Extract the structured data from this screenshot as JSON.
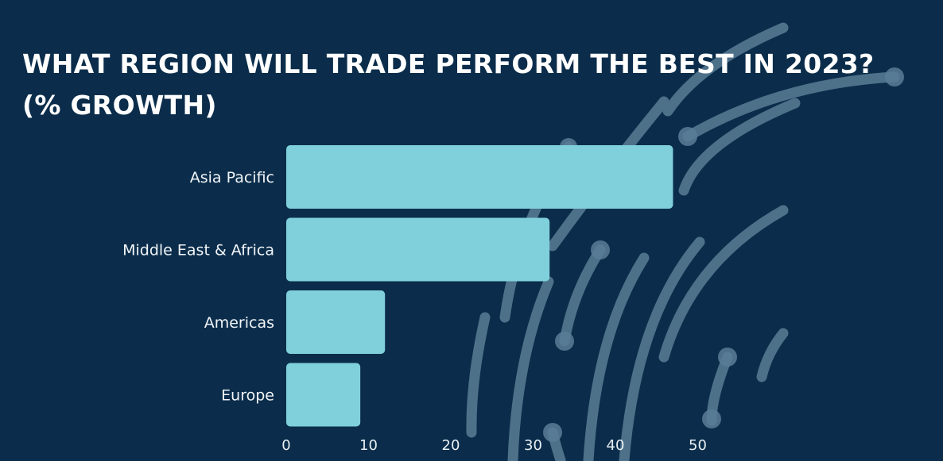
{
  "title": {
    "line1": "WHAT REGION WILL TRADE PERFORM THE BEST IN 2023?",
    "line2": "(% GROWTH)"
  },
  "colors": {
    "background": "#0b2d4b",
    "bar": "#7fd0db",
    "decoration": "#5a7d96"
  },
  "chart_data": {
    "type": "bar",
    "orientation": "horizontal",
    "title": "WHAT REGION WILL TRADE PERFORM THE BEST IN 2023? (% GROWTH)",
    "categories": [
      "Asia Pacific",
      "Middle East & Africa",
      "Americas",
      "Europe"
    ],
    "values": [
      47,
      32,
      12,
      9
    ],
    "xlim": [
      0,
      50
    ],
    "xticks": [
      0,
      10,
      20,
      30,
      40,
      50
    ],
    "grid": false,
    "legend": "none"
  }
}
